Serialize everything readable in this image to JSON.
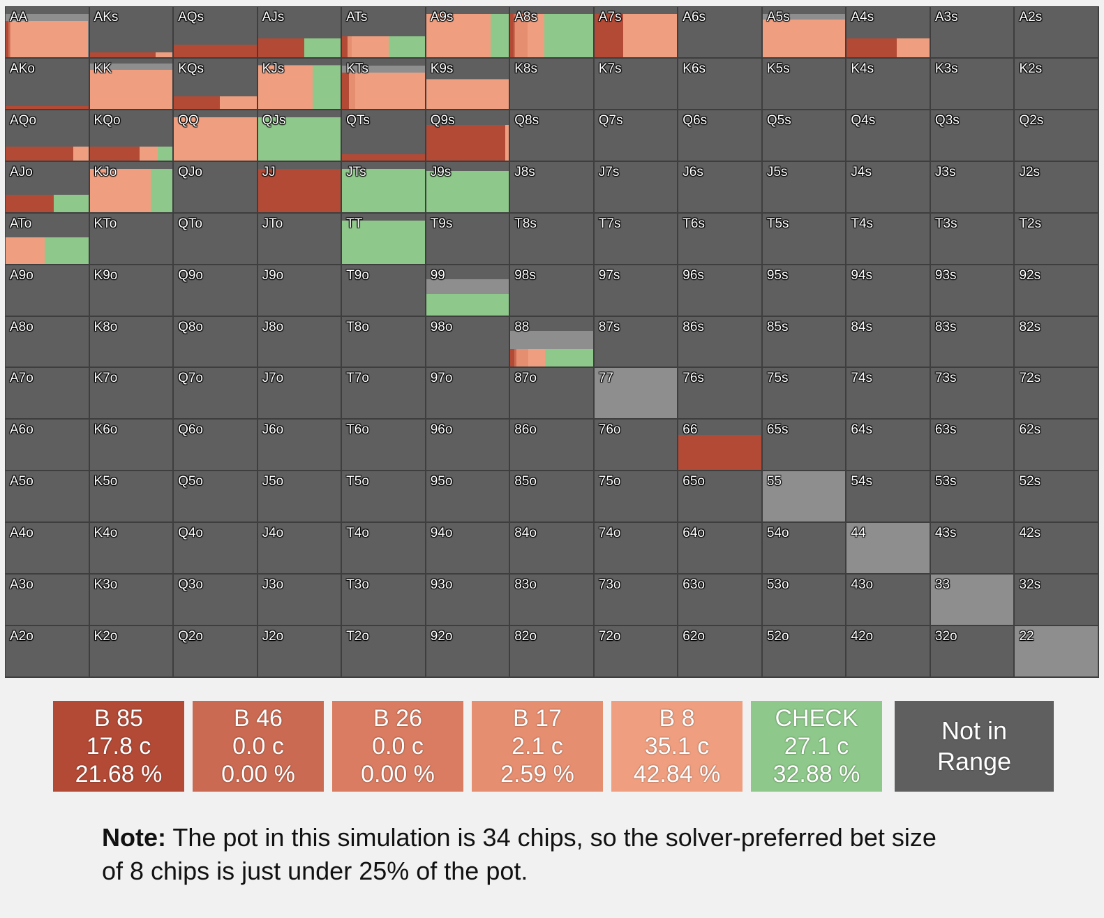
{
  "chart_data": {
    "type": "heatmap",
    "description_of_cells": "13x13 poker hand range grid; each hand shows strategy mix (fractions per action) and range weight",
    "ranks": [
      "A",
      "K",
      "Q",
      "J",
      "T",
      "9",
      "8",
      "7",
      "6",
      "5",
      "4",
      "3",
      "2"
    ],
    "actions": [
      "B 85",
      "B 46",
      "B 26",
      "B 17",
      "B 8",
      "CHECK"
    ],
    "action_colors": {
      "B 85": "#b24a36",
      "B 46": "#cb6a52",
      "B 26": "#d97c62",
      "B 17": "#e68e70",
      "B 8": "#ef9f80",
      "CHECK": "#8ec88a"
    },
    "not_in_range_color": "#5f5f5f",
    "weight_bg_color": "#8e8e8e",
    "cells": {
      "AA": {
        "w": 0.86,
        "s": [
          0.03,
          0.02,
          0,
          0.02,
          0.93,
          0
        ]
      },
      "AKs": {
        "w": 0.09,
        "s": [
          0.8,
          0,
          0,
          0,
          0.2,
          0
        ]
      },
      "AQs": {
        "w": 0.25,
        "s": [
          1,
          0,
          0,
          0,
          0,
          0
        ]
      },
      "AJs": {
        "w": 0.38,
        "s": [
          0.56,
          0,
          0,
          0,
          0,
          0.44
        ]
      },
      "ATs": {
        "w": 0.42,
        "s": [
          0.07,
          0,
          0,
          0.05,
          0.44,
          0.44
        ]
      },
      "A9s": {
        "w": 0.86,
        "s": [
          0,
          0,
          0,
          0,
          0.78,
          0.22
        ]
      },
      "A8s": {
        "w": 0.86,
        "s": [
          0.04,
          0.02,
          0,
          0.15,
          0.2,
          0.59
        ]
      },
      "A7s": {
        "w": 0.86,
        "s": [
          0.35,
          0,
          0,
          0,
          0.65,
          0
        ]
      },
      "A5s": {
        "w": 0.86,
        "s": [
          0,
          0,
          0,
          0,
          1,
          0
        ]
      },
      "A4s": {
        "w": 0.38,
        "s": [
          0.6,
          0,
          0,
          0,
          0.4,
          0
        ]
      },
      "AKo": {
        "w": 0.06,
        "s": [
          1,
          0,
          0,
          0,
          0,
          0
        ]
      },
      "KK": {
        "w": 0.9,
        "s": [
          0,
          0,
          0,
          0,
          1,
          0
        ]
      },
      "KQs": {
        "w": 0.25,
        "s": [
          0.56,
          0,
          0,
          0,
          0.44,
          0
        ]
      },
      "KJs": {
        "w": 0.88,
        "s": [
          0,
          0,
          0,
          0,
          0.66,
          0.34
        ]
      },
      "KTs": {
        "w": 0.86,
        "s": [
          0.08,
          0,
          0,
          0.08,
          0.84,
          0
        ]
      },
      "K9s": {
        "w": 0.6,
        "s": [
          0,
          0,
          0,
          0,
          1,
          0
        ]
      },
      "AQo": {
        "w": 0.28,
        "s": [
          0.82,
          0,
          0,
          0,
          0.18,
          0
        ]
      },
      "KQo": {
        "w": 0.28,
        "s": [
          0.6,
          0,
          0,
          0,
          0.22,
          0.18
        ]
      },
      "QQ": {
        "w": 0.86,
        "s": [
          0,
          0,
          0,
          0,
          1,
          0
        ]
      },
      "QJs": {
        "w": 0.86,
        "s": [
          0,
          0,
          0,
          0,
          0,
          1
        ]
      },
      "QTs": {
        "w": 0.12,
        "s": [
          1,
          0,
          0,
          0,
          0,
          0
        ]
      },
      "Q9s": {
        "w": 0.7,
        "s": [
          0.96,
          0,
          0,
          0,
          0.04,
          0
        ]
      },
      "AJo": {
        "w": 0.35,
        "s": [
          0.58,
          0,
          0,
          0,
          0,
          0.42
        ]
      },
      "KJo": {
        "w": 0.86,
        "s": [
          0,
          0,
          0,
          0,
          0.74,
          0.26
        ]
      },
      "JJ": {
        "w": 0.86,
        "s": [
          1,
          0,
          0,
          0,
          0,
          0
        ]
      },
      "JTs": {
        "w": 0.86,
        "s": [
          0,
          0,
          0,
          0,
          0,
          1
        ]
      },
      "J9s": {
        "w": 0.82,
        "s": [
          0,
          0,
          0,
          0,
          0,
          1
        ]
      },
      "ATo": {
        "w": 0.52,
        "s": [
          0,
          0,
          0,
          0,
          0.47,
          0.53
        ]
      },
      "TT": {
        "w": 0.86,
        "s": [
          0,
          0,
          0,
          0,
          0,
          1
        ]
      },
      "99": {
        "w": 0.72,
        "s": [
          0,
          0,
          0,
          0,
          0,
          1
        ]
      },
      "88": {
        "w": 0.72,
        "s": [
          0.05,
          0.02,
          0,
          0.15,
          0.2,
          0.58
        ]
      },
      "77": {
        "w": 1.0,
        "s": []
      },
      "66": {
        "w": 0.7,
        "s": [
          1,
          0,
          0,
          0,
          0,
          0
        ]
      },
      "55": {
        "w": 1.0,
        "s": []
      },
      "44": {
        "w": 1.0,
        "s": []
      },
      "33": {
        "w": 1.0,
        "s": []
      },
      "22": {
        "w": 1.0,
        "s": []
      }
    },
    "bar_heights": {
      "AA": 0.72,
      "AKs": 0.09,
      "AQs": 0.25,
      "AJs": 0.38,
      "ATs": 0.42,
      "A9s": 0.86,
      "A8s": 0.86,
      "A7s": 0.86,
      "A5s": 0.75,
      "A4s": 0.38,
      "AKo": 0.06,
      "KK": 0.78,
      "KQs": 0.25,
      "KJs": 0.86,
      "KTs": 0.72,
      "K9s": 0.58,
      "AQo": 0.28,
      "KQo": 0.28,
      "QQ": 0.86,
      "QJs": 0.86,
      "QTs": 0.12,
      "Q9s": 0.7,
      "AJo": 0.35,
      "KJo": 0.86,
      "JJ": 0.86,
      "JTs": 0.86,
      "J9s": 0.82,
      "ATo": 0.52,
      "TT": 0.86,
      "99": 0.42,
      "88": 0.35,
      "66": 0.7
    }
  },
  "legend": [
    {
      "line1": "B 85",
      "line2": "17.8 c",
      "line3": "21.68 %",
      "color": "#b24a36"
    },
    {
      "line1": "B 46",
      "line2": "0.0 c",
      "line3": "0.00 %",
      "color": "#cb6a52"
    },
    {
      "line1": "B 26",
      "line2": "0.0 c",
      "line3": "0.00 %",
      "color": "#d97c62"
    },
    {
      "line1": "B 17",
      "line2": "2.1 c",
      "line3": "2.59 %",
      "color": "#e68e70"
    },
    {
      "line1": "B 8",
      "line2": "35.1 c",
      "line3": "42.84 %",
      "color": "#ef9f80"
    },
    {
      "line1": "CHECK",
      "line2": "27.1 c",
      "line3": "32.88 %",
      "color": "#8ec88a"
    }
  ],
  "not_in_range": {
    "line1": "Not in",
    "line2": "Range",
    "color": "#5f5f5f"
  },
  "note": {
    "label": "Note:",
    "text": " The pot in this simulation is 34 chips, so the solver-preferred bet size of 8 chips is just under 25% of the pot."
  }
}
